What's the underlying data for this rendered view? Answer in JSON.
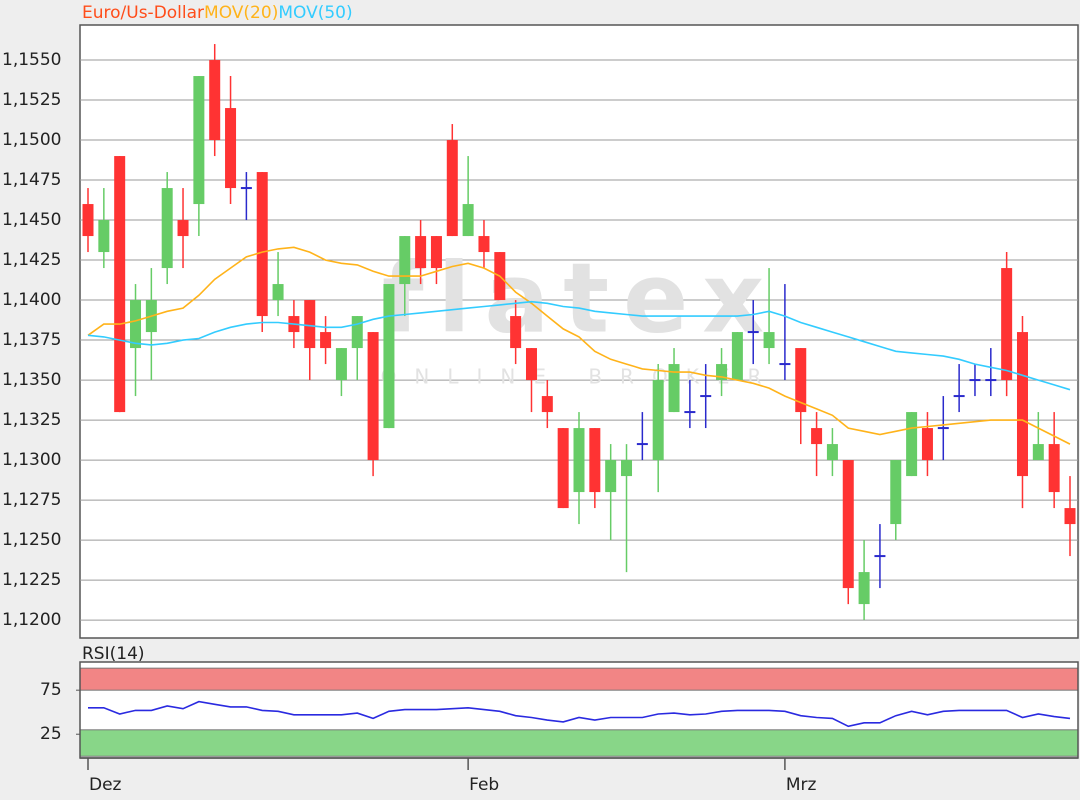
{
  "chart_data": [
    {
      "type": "candlestick",
      "name": "Euro/Us-Dollar",
      "color": "#ff4d1a",
      "up_color": "#66cc66",
      "down_color": "#ff3333",
      "doji_color": "#2a2acc",
      "categories": [
        "Dez",
        null,
        null,
        null,
        null,
        null,
        null,
        null,
        null,
        null,
        null,
        null,
        null,
        null,
        null,
        null,
        null,
        null,
        null,
        null,
        null,
        null,
        null,
        null,
        "Feb",
        null,
        null,
        null,
        null,
        null,
        null,
        null,
        null,
        null,
        null,
        null,
        null,
        null,
        null,
        null,
        null,
        null,
        null,
        null,
        "Mrz",
        null,
        null,
        null,
        null,
        null,
        null,
        null,
        null,
        null,
        null,
        null,
        null,
        null,
        null,
        null,
        null,
        null,
        null
      ],
      "open": [
        1.146,
        1.143,
        1.149,
        1.137,
        1.138,
        1.142,
        1.145,
        1.146,
        1.155,
        1.152,
        1.147,
        1.148,
        1.14,
        1.139,
        1.14,
        1.138,
        1.135,
        1.137,
        1.138,
        1.132,
        1.141,
        1.144,
        1.144,
        1.15,
        1.144,
        1.144,
        1.143,
        1.139,
        1.137,
        1.134,
        1.132,
        1.128,
        1.132,
        1.128,
        1.129,
        1.131,
        1.13,
        1.133,
        1.133,
        1.134,
        1.135,
        1.135,
        1.138,
        1.137,
        1.136,
        1.137,
        1.132,
        1.13,
        1.13,
        1.121,
        1.124,
        1.126,
        1.129,
        1.132,
        1.132,
        1.134,
        1.135,
        1.135,
        1.142,
        1.138,
        1.13,
        1.131,
        1.127
      ],
      "high": [
        1.147,
        1.147,
        1.149,
        1.141,
        1.142,
        1.148,
        1.147,
        1.154,
        1.156,
        1.154,
        1.148,
        1.148,
        1.143,
        1.14,
        1.14,
        1.139,
        1.137,
        1.139,
        1.138,
        1.141,
        1.144,
        1.145,
        1.144,
        1.151,
        1.149,
        1.145,
        1.143,
        1.14,
        1.137,
        1.135,
        1.132,
        1.133,
        1.132,
        1.131,
        1.131,
        1.133,
        1.136,
        1.137,
        1.135,
        1.136,
        1.137,
        1.138,
        1.14,
        1.142,
        1.141,
        1.137,
        1.133,
        1.132,
        1.13,
        1.125,
        1.126,
        1.13,
        1.133,
        1.133,
        1.134,
        1.136,
        1.136,
        1.137,
        1.143,
        1.139,
        1.133,
        1.133,
        1.129
      ],
      "low": [
        1.143,
        1.142,
        1.133,
        1.134,
        1.135,
        1.141,
        1.142,
        1.144,
        1.149,
        1.146,
        1.145,
        1.138,
        1.139,
        1.137,
        1.135,
        1.136,
        1.134,
        1.135,
        1.129,
        1.132,
        1.139,
        1.141,
        1.141,
        1.144,
        1.144,
        1.142,
        1.14,
        1.136,
        1.133,
        1.132,
        1.127,
        1.126,
        1.127,
        1.125,
        1.123,
        1.13,
        1.128,
        1.133,
        1.132,
        1.132,
        1.134,
        1.135,
        1.136,
        1.136,
        1.135,
        1.131,
        1.129,
        1.129,
        1.121,
        1.12,
        1.122,
        1.125,
        1.129,
        1.129,
        1.13,
        1.133,
        1.134,
        1.134,
        1.134,
        1.127,
        1.13,
        1.127,
        1.124
      ],
      "close": [
        1.144,
        1.145,
        1.133,
        1.14,
        1.14,
        1.147,
        1.144,
        1.154,
        1.15,
        1.147,
        1.147,
        1.139,
        1.141,
        1.138,
        1.137,
        1.137,
        1.137,
        1.139,
        1.13,
        1.141,
        1.144,
        1.142,
        1.142,
        1.144,
        1.146,
        1.143,
        1.14,
        1.137,
        1.135,
        1.133,
        1.127,
        1.132,
        1.128,
        1.13,
        1.13,
        1.131,
        1.135,
        1.136,
        1.133,
        1.134,
        1.136,
        1.138,
        1.138,
        1.138,
        1.136,
        1.133,
        1.131,
        1.131,
        1.122,
        1.123,
        1.124,
        1.13,
        1.133,
        1.13,
        1.132,
        1.134,
        1.135,
        1.135,
        1.135,
        1.129,
        1.131,
        1.128,
        1.126
      ],
      "series": [
        {
          "name": "MOV(20)",
          "color": "#ffb31a",
          "values": [
            1.1378,
            1.1385,
            1.1385,
            1.1387,
            1.139,
            1.1393,
            1.1395,
            1.1403,
            1.1413,
            1.142,
            1.1427,
            1.143,
            1.1432,
            1.1433,
            1.143,
            1.1425,
            1.1423,
            1.1422,
            1.1418,
            1.1415,
            1.1415,
            1.1415,
            1.1418,
            1.1421,
            1.1423,
            1.142,
            1.1415,
            1.1405,
            1.1398,
            1.139,
            1.1382,
            1.1377,
            1.1368,
            1.1363,
            1.136,
            1.1357,
            1.1356,
            1.1355,
            1.1355,
            1.1353,
            1.1352,
            1.135,
            1.1348,
            1.1345,
            1.134,
            1.1336,
            1.1332,
            1.1328,
            1.132,
            1.1318,
            1.1316,
            1.1318,
            1.132,
            1.1321,
            1.1322,
            1.1323,
            1.1324,
            1.1325,
            1.1325,
            1.1325,
            1.132,
            1.1315,
            1.131
          ]
        },
        {
          "name": "MOV(50)",
          "color": "#33ccff",
          "values": [
            1.1378,
            1.1377,
            1.1375,
            1.1373,
            1.1372,
            1.1373,
            1.1375,
            1.1376,
            1.138,
            1.1383,
            1.1385,
            1.1386,
            1.1386,
            1.1385,
            1.1384,
            1.1383,
            1.1383,
            1.1385,
            1.1388,
            1.139,
            1.1391,
            1.1392,
            1.1393,
            1.1394,
            1.1395,
            1.1396,
            1.1397,
            1.1398,
            1.1399,
            1.1398,
            1.1396,
            1.1395,
            1.1393,
            1.1392,
            1.1391,
            1.139,
            1.139,
            1.139,
            1.139,
            1.139,
            1.139,
            1.139,
            1.1391,
            1.1393,
            1.139,
            1.1386,
            1.1383,
            1.138,
            1.1377,
            1.1374,
            1.1371,
            1.1368,
            1.1367,
            1.1366,
            1.1365,
            1.1363,
            1.136,
            1.1358,
            1.1356,
            1.1353,
            1.135,
            1.1347,
            1.1344
          ]
        }
      ],
      "ylim": [
        1.11888,
        1.15719
      ],
      "yticks": [
        {
          "value": 1.12,
          "label": "1,1200"
        },
        {
          "value": 1.1225,
          "label": "1,1225"
        },
        {
          "value": 1.125,
          "label": "1,1250"
        },
        {
          "value": 1.1275,
          "label": "1,1275"
        },
        {
          "value": 1.13,
          "label": "1,1300"
        },
        {
          "value": 1.1325,
          "label": "1,1325"
        },
        {
          "value": 1.135,
          "label": "1,1350"
        },
        {
          "value": 1.1375,
          "label": "1,1375"
        },
        {
          "value": 1.14,
          "label": "1,1400"
        },
        {
          "value": 1.1425,
          "label": "1,1425"
        },
        {
          "value": 1.145,
          "label": "1,1450"
        },
        {
          "value": 1.1475,
          "label": "1,1475"
        },
        {
          "value": 1.15,
          "label": "1,1500"
        },
        {
          "value": 1.1525,
          "label": "1,1525"
        },
        {
          "value": 1.155,
          "label": "1,1550"
        }
      ],
      "grid": true,
      "watermark": {
        "logo": "flatex",
        "tagline": "ONLINE BROKER"
      }
    },
    {
      "type": "line",
      "title": "RSI(14)",
      "title_color": "#1a1acc",
      "series": [
        {
          "name": "RSI(14)",
          "color": "#2a2ae0",
          "values": [
            55,
            55,
            48,
            52,
            52,
            57,
            54,
            62,
            59,
            56,
            56,
            52,
            51,
            47,
            47,
            47,
            47,
            49,
            43,
            51,
            53,
            53,
            53,
            54,
            55,
            53,
            51,
            46,
            44,
            41,
            39,
            44,
            41,
            44,
            44,
            44,
            48,
            49,
            47,
            48,
            51,
            52,
            52,
            52,
            51,
            46,
            44,
            43,
            34,
            38,
            38,
            46,
            51,
            47,
            51,
            52,
            52,
            52,
            52,
            44,
            48,
            45,
            43
          ]
        }
      ],
      "bands": [
        {
          "from": 75,
          "to": 100,
          "color": "#f28585"
        },
        {
          "from": 0,
          "to": 30,
          "color": "#88d688"
        }
      ],
      "ylim": [
        -2,
        107
      ],
      "yticks": [
        25,
        75
      ]
    }
  ]
}
